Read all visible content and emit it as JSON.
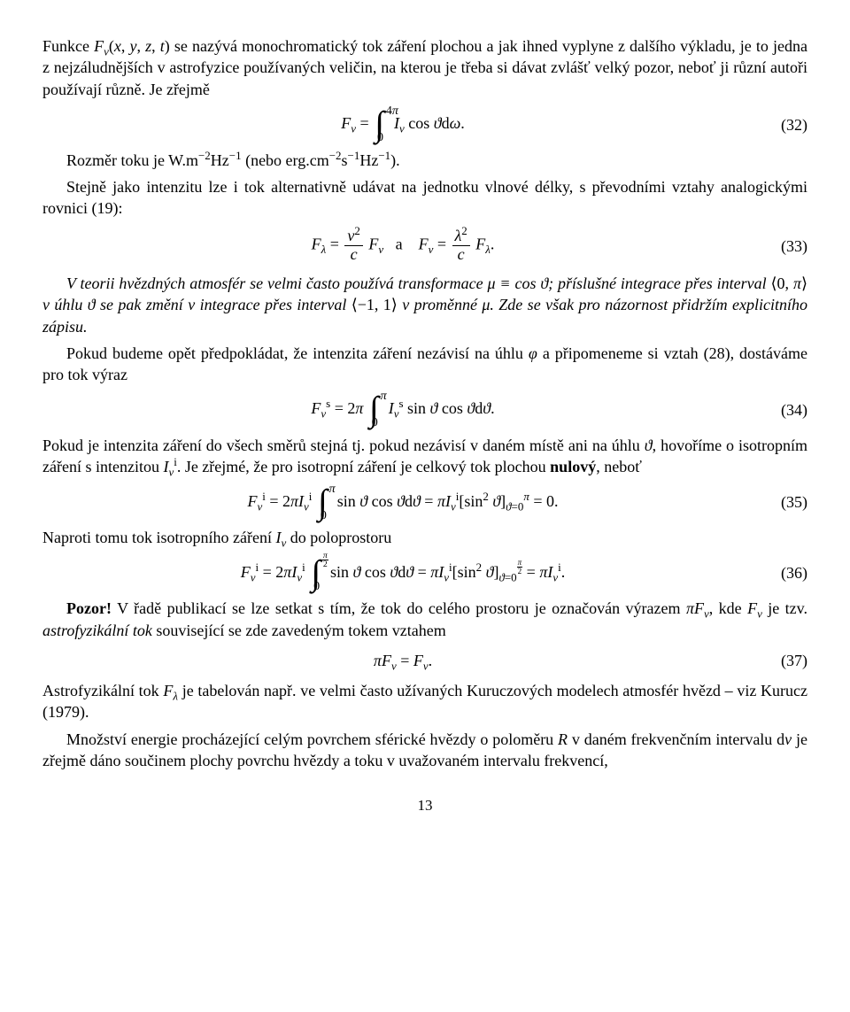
{
  "p1": "Funkce ℱ_ν(x, y, z, t) se nazývá monochromatický tok záření plochou a jak ihned vyplyne z dalšího výkladu, je to jedna z nejzáludnějších v astrofyzice používaných veličin, na kterou je třeba si dávat zvlášť velký pozor, neboť ji různí autoři používají různě. Je zřejmě",
  "eq32": {
    "num": "(32)"
  },
  "p2a": "Rozměr toku je W.m⁻²Hz⁻¹ (nebo erg.cm⁻²s⁻¹Hz⁻¹).",
  "p2b": "Stejně jako intenzitu lze i tok alternativně udávat na jednotku vlnové délky, s převodními vztahy analogickými rovnici (19):",
  "eq33": {
    "num": "(33)"
  },
  "p3": "V teorii hvězdných atmosfér se velmi často používá transformace μ ≡ cos ϑ; příslušné integrace přes interval ⟨0, π⟩ v úhlu ϑ se pak změní v integrace přes interval ⟨−1, 1⟩ v proměnné μ. Zde se však pro názornost přidržím explicitního zápisu.",
  "p4": "Pokud budeme opět předpokládat, že intenzita záření nezávisí na úhlu φ a připomeneme si vztah (28), dostáváme pro tok výraz",
  "eq34": {
    "num": "(34)"
  },
  "p5": "Pokud je intenzita záření do všech směrů stejná tj. pokud nezávisí v daném místě ani na úhlu ϑ, hovoříme o isotropním záření s intenzitou I_ν^i. Je zřejmé, že pro isotropní záření je celkový tok plochou nulový, neboť",
  "eq35": {
    "num": "(35)"
  },
  "p6": "Naproti tomu tok isotropního záření I_ν do poloprostoru",
  "eq36": {
    "num": "(36)"
  },
  "p7a": "Pozor!",
  "p7b": " V řadě publikací se lze setkat s tím, že tok do celého prostoru je označován výrazem πF_ν, kde F_ν je tzv. astrofyzikální tok související se zde zavedeným tokem vztahem",
  "eq37": {
    "num": "(37)"
  },
  "p8": "Astrofyzikální tok F_λ je tabelován např. ve velmi často užívaných Kuruczových modelech atmosfér hvězd – viz Kurucz (1979).",
  "p9": "Množství energie procházející celým povrchem sférické hvězdy o poloměru R v daném frekvenčním intervalu dν je zřejmě dáno součinem plochy povrchu hvězdy a toku v uvažovaném intervalu frekvencí,",
  "pagenum": "13"
}
